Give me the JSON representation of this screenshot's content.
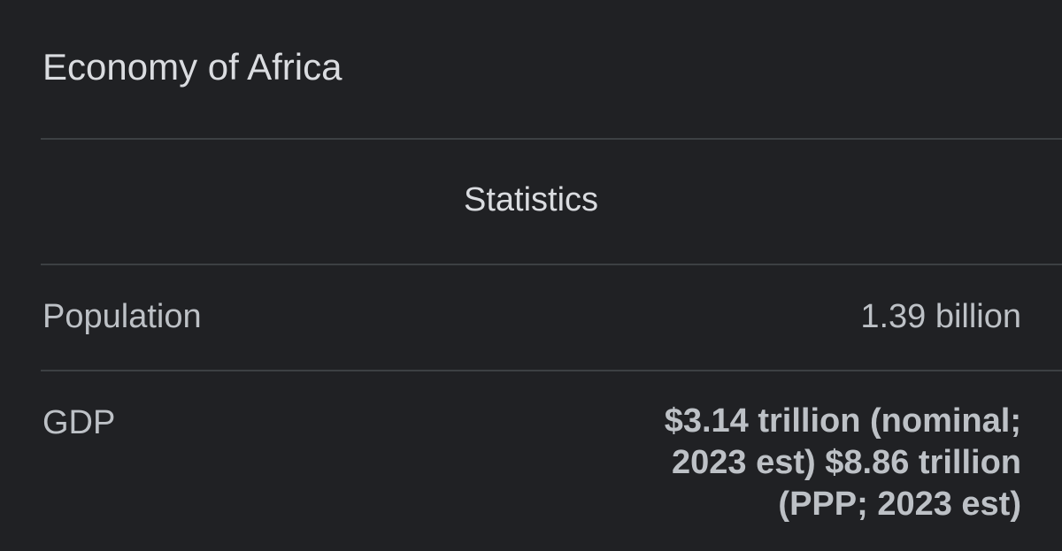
{
  "header": {
    "title": "Economy of Africa"
  },
  "table": {
    "heading": "Statistics",
    "rows": [
      [
        "Population",
        "1.39 billion"
      ],
      [
        "GDP",
        "$3.14 trillion (nominal; 2023 est) $8.86 trillion (PPP; 2023 est)"
      ]
    ]
  }
}
